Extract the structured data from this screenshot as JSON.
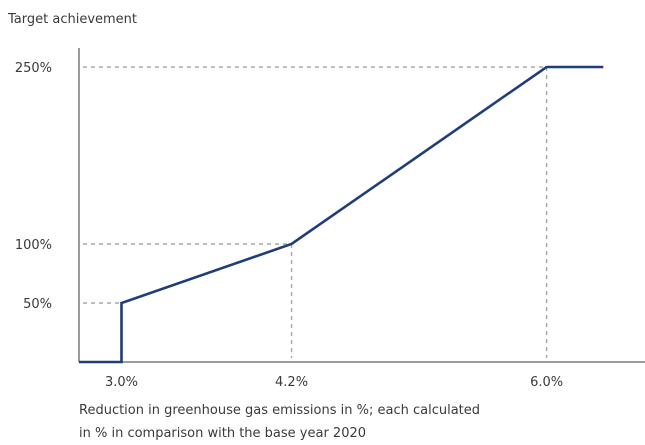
{
  "chart_data": {
    "type": "line",
    "ylabel": "Target achievement",
    "xlabel_lines": [
      "Reduction in greenhouse gas emissions in %; each calculated",
      "in % in comparison with the base year 2020"
    ],
    "x_ticks": [
      "3.0%",
      "4.2%",
      "6.0%"
    ],
    "y_ticks": [
      "50%",
      "100%",
      "250%"
    ],
    "series": [
      {
        "points": [
          {
            "x": 2.7,
            "y": 0
          },
          {
            "x": 3.0,
            "y": 0
          },
          {
            "x": 3.0,
            "y": 50
          },
          {
            "x": 4.2,
            "y": 100
          },
          {
            "x": 6.0,
            "y": 250
          },
          {
            "x": 6.4,
            "y": 250
          }
        ]
      }
    ],
    "reference_lines": [
      {
        "x": 3.0,
        "y": 50
      },
      {
        "x": 4.2,
        "y": 100
      },
      {
        "x": 6.0,
        "y": 250
      }
    ],
    "xlim": [
      2.7,
      7.0
    ],
    "ylim": [
      0,
      250
    ],
    "grid": false,
    "colors": {
      "line": "#1f3d78",
      "axis": "#3a3a3a",
      "dashed": "#a6a6a6",
      "text": "#3a3a3a"
    }
  }
}
